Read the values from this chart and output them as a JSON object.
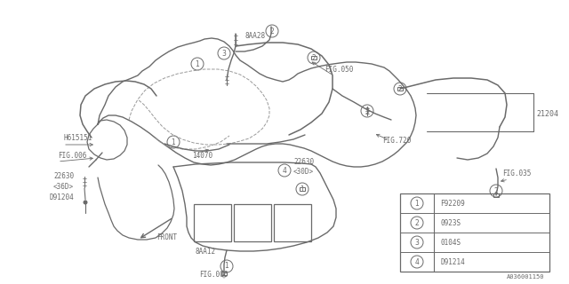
{
  "bg_color": "#ffffff",
  "line_color": "#6a6a6a",
  "legend_items": [
    {
      "num": "1",
      "code": "F92209"
    },
    {
      "num": "2",
      "code": "0923S"
    },
    {
      "num": "3",
      "code": "0104S"
    },
    {
      "num": "4",
      "code": "D91214"
    }
  ],
  "diagram_code": "A036001150"
}
